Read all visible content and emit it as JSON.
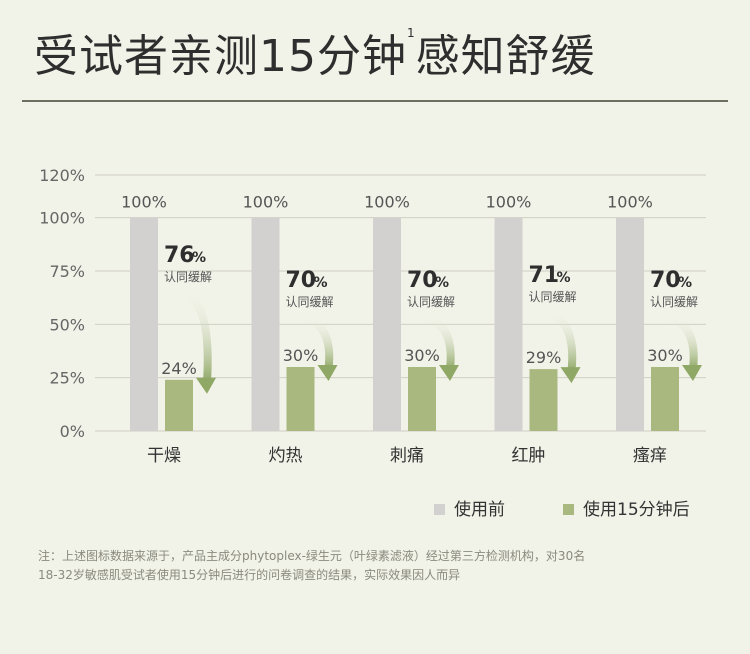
{
  "title": {
    "main": "受试者亲测15分钟",
    "sup": "1",
    "tail": "感知舒缓"
  },
  "colors": {
    "before": "#d3d0d0",
    "after": "#a9b87f",
    "arrow": "#8fa866",
    "grid": "#cfcfc4",
    "axis_text": "#666",
    "callout_text": "#2e2e2e"
  },
  "chart_data": {
    "type": "bar",
    "categories": [
      "干燥",
      "灼热",
      "刺痛",
      "红肿",
      "瘙痒"
    ],
    "series": [
      {
        "name": "使用前",
        "values": [
          100,
          100,
          100,
          100,
          100
        ],
        "value_labels": [
          "100%",
          "100%",
          "100%",
          "100%",
          "100%"
        ]
      },
      {
        "name": "使用15分钟后",
        "values": [
          24,
          30,
          30,
          29,
          30
        ],
        "value_labels": [
          "24%",
          "30%",
          "30%",
          "29%",
          "30%"
        ]
      }
    ],
    "callouts": [
      {
        "value": "76",
        "unit": "%",
        "text": "认同缓解"
      },
      {
        "value": "70",
        "unit": "%",
        "text": "认同缓解"
      },
      {
        "value": "70",
        "unit": "%",
        "text": "认同缓解"
      },
      {
        "value": "71",
        "unit": "%",
        "text": "认同缓解"
      },
      {
        "value": "70",
        "unit": "%",
        "text": "认同缓解"
      }
    ],
    "yticks": [
      "120%",
      "100%",
      "75%",
      "50%",
      "25%",
      "0%"
    ],
    "ytick_values": [
      120,
      100,
      75,
      50,
      25,
      0
    ],
    "ylim": [
      0,
      120
    ],
    "legend_position": "bottom-right",
    "grid": true
  },
  "footnote": {
    "line1": "注：上述图标数据来源于，产品主成分phytoplex-绿生元（叶绿素滤液）经过第三方检测机构，对30名",
    "line2": "18-32岁敏感肌受试者使用15分钟后进行的问卷调查的结果，实际效果因人而异"
  }
}
